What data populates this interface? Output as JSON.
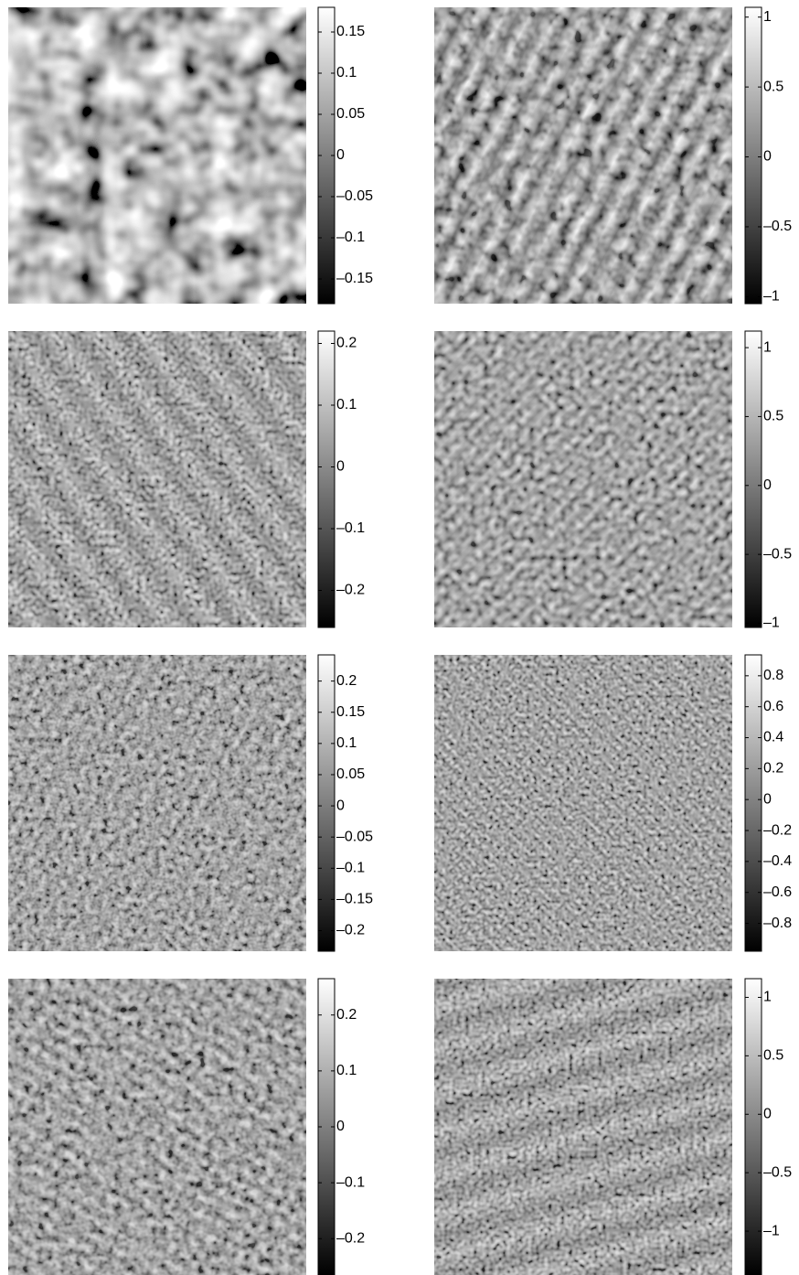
{
  "chart_data": [
    {
      "type": "image",
      "colormap": "gray",
      "ylim": [
        -0.18,
        0.18
      ],
      "yticks": [
        {
          "value": -0.15,
          "label": "–0.15"
        },
        {
          "value": -0.1,
          "label": "–0.1"
        },
        {
          "value": -0.05,
          "label": "–0.05"
        },
        0,
        0.05,
        0.1,
        0.15
      ]
    },
    {
      "type": "image",
      "colormap": "gray",
      "ylim": [
        -1.05,
        1.07
      ],
      "yticks": [
        {
          "value": -1,
          "label": "–1"
        },
        {
          "value": -0.5,
          "label": "–0.5"
        },
        0,
        0.5,
        1
      ]
    },
    {
      "type": "image",
      "colormap": "gray",
      "ylim": [
        -0.26,
        0.22
      ],
      "yticks": [
        {
          "value": -0.2,
          "label": "–0.2"
        },
        {
          "value": -0.1,
          "label": "–0.1"
        },
        0,
        0.1,
        0.2
      ]
    },
    {
      "type": "image",
      "colormap": "gray",
      "ylim": [
        -1.03,
        1.12
      ],
      "yticks": [
        {
          "value": -1,
          "label": "–1"
        },
        {
          "value": -0.5,
          "label": "–0.5"
        },
        0,
        0.5,
        1
      ]
    },
    {
      "type": "image",
      "colormap": "gray",
      "ylim": [
        -0.233,
        0.242
      ],
      "yticks": [
        {
          "value": -0.2,
          "label": "–0.2"
        },
        {
          "value": -0.15,
          "label": "–0.15"
        },
        {
          "value": -0.1,
          "label": "–0.1"
        },
        {
          "value": -0.05,
          "label": "–0.05"
        },
        0,
        0.05,
        0.1,
        0.15,
        0.2
      ]
    },
    {
      "type": "image",
      "colormap": "gray",
      "ylim": [
        -0.98,
        0.935
      ],
      "yticks": [
        {
          "value": -0.8,
          "label": "–0.8"
        },
        {
          "value": -0.6,
          "label": "–0.6"
        },
        {
          "value": -0.4,
          "label": "–0.4"
        },
        {
          "value": -0.2,
          "label": "–0.2"
        },
        0,
        0.2,
        0.4,
        0.6,
        0.8
      ]
    },
    {
      "type": "image",
      "colormap": "gray",
      "ylim": [
        -0.265,
        0.265
      ],
      "yticks": [
        {
          "value": -0.2,
          "label": "–0.2"
        },
        {
          "value": -0.1,
          "label": "–0.1"
        },
        0,
        0.1,
        0.2
      ]
    },
    {
      "type": "image",
      "colormap": "gray",
      "ylim": [
        -1.375,
        1.16
      ],
      "yticks": [
        {
          "value": -1,
          "label": "–1"
        },
        {
          "value": -0.5,
          "label": "–0.5"
        },
        0,
        0.5,
        1
      ]
    }
  ]
}
